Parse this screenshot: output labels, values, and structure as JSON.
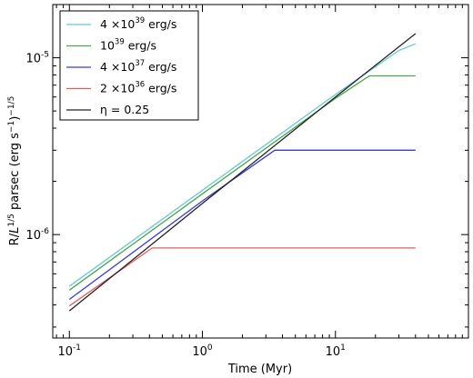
{
  "chart_data": {
    "type": "line",
    "title": "",
    "xlabel": "Time (Myr)",
    "ylabel": "R/L^{1/5} parsec (erg s^{-1})^{-1/5}",
    "xscale": "log",
    "yscale": "log",
    "xlim": [
      0.075,
      100
    ],
    "ylim": [
      2.6e-07,
      2e-05
    ],
    "x_ticks": [
      {
        "value": 0.1,
        "base": "10",
        "exp": "-1"
      },
      {
        "value": 1,
        "base": "10",
        "exp": "0"
      },
      {
        "value": 10,
        "base": "10",
        "exp": "1"
      }
    ],
    "y_ticks": [
      {
        "value": 1e-06,
        "base": "10",
        "exp": "-6"
      },
      {
        "value": 1e-05,
        "base": "10",
        "exp": "-5"
      }
    ],
    "grid": false,
    "legend_position": "top-left",
    "series": [
      {
        "name": "4 ×10^39 erg/s",
        "color": "#62cccc",
        "x": [
          0.1,
          1,
          10,
          30,
          40
        ],
        "y": [
          5.1e-07,
          1.78e-06,
          6.2e-06,
          1.1e-05,
          1.2e-05
        ]
      },
      {
        "name": "10^39 erg/s",
        "color": "#4da24d",
        "x": [
          0.1,
          1,
          10,
          18,
          40
        ],
        "y": [
          4.85e-07,
          1.7e-06,
          5.9e-06,
          7.9e-06,
          7.9e-06
        ]
      },
      {
        "name": "4 ×10^37 erg/s",
        "color": "#3a3ad6",
        "x": [
          0.1,
          1,
          3.5,
          40
        ],
        "y": [
          4.3e-07,
          1.55e-06,
          3e-06,
          3e-06
        ]
      },
      {
        "name": "2 ×10^36 erg/s",
        "color": "#e06060",
        "x": [
          0.1,
          0.42,
          40
        ],
        "y": [
          3.95e-07,
          8.4e-07,
          8.4e-07
        ]
      },
      {
        "name": "η = 0.25",
        "color": "#222222",
        "x": [
          0.1,
          1,
          10,
          40
        ],
        "y": [
          3.7e-07,
          1.5e-06,
          6e-06,
          1.37e-05
        ]
      }
    ]
  }
}
